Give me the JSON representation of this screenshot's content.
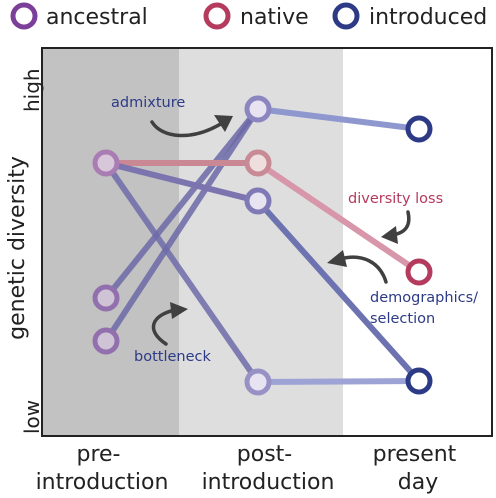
{
  "legend": {
    "ancestral": {
      "label": "ancestral",
      "color": "#7b3f99"
    },
    "native": {
      "label": "native",
      "color": "#b43a5e"
    },
    "introduced": {
      "label": "introduced",
      "color": "#2d3a86"
    }
  },
  "axis": {
    "ylabel": "genetic diversity",
    "y_high": "high",
    "y_low": "low",
    "x_categories": [
      [
        "pre-",
        "introduction"
      ],
      [
        "post-",
        "introduction"
      ],
      [
        "present",
        "day"
      ]
    ]
  },
  "annotations": {
    "admixture": {
      "text": "admixture",
      "color": "#2d3a86"
    },
    "bottleneck": {
      "text": "bottleneck",
      "color": "#2d3a86"
    },
    "diversity_loss": {
      "text": "diversity loss",
      "color": "#b43a5e"
    },
    "demographics": {
      "lines": [
        "demographics/",
        "selection"
      ],
      "color": "#2d3a86"
    }
  },
  "colors": {
    "pre_zone": "#c2c2c2",
    "post_zone": "#dedede",
    "arrow": "#404040",
    "axis": "#222222"
  }
}
